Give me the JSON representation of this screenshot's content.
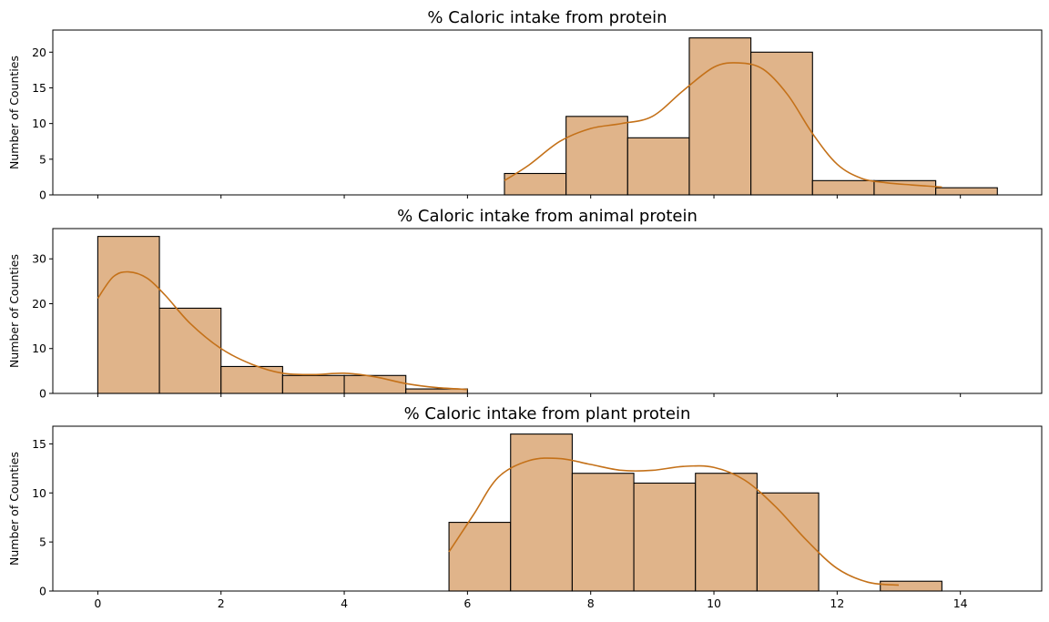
{
  "chart_data": [
    {
      "type": "histogram",
      "title": "% Caloric intake from protein",
      "xlabel": "",
      "ylabel": "Number of Counties",
      "xlim": [
        -0.73,
        15.32
      ],
      "ylim": [
        0,
        23.1
      ],
      "yticks": [
        0,
        5,
        10,
        15,
        20
      ],
      "bin_width": 1.0,
      "bins": [
        {
          "x0": 6.6,
          "x1": 7.6,
          "count": 3
        },
        {
          "x0": 7.6,
          "x1": 8.6,
          "count": 11
        },
        {
          "x0": 8.6,
          "x1": 9.6,
          "count": 8
        },
        {
          "x0": 9.6,
          "x1": 10.6,
          "count": 22
        },
        {
          "x0": 10.6,
          "x1": 11.6,
          "count": 20
        },
        {
          "x0": 11.6,
          "x1": 12.6,
          "count": 2
        },
        {
          "x0": 12.6,
          "x1": 13.6,
          "count": 2
        },
        {
          "x0": 13.6,
          "x1": 14.6,
          "count": 1
        }
      ],
      "kde": {
        "x": [
          6.6,
          7.0,
          7.5,
          8.0,
          8.5,
          9.0,
          9.5,
          10.0,
          10.4,
          10.8,
          11.2,
          11.6,
          12.0,
          12.4,
          12.8,
          13.2,
          13.7
        ],
        "y": [
          2.0,
          4.2,
          7.5,
          9.3,
          10.0,
          11.0,
          14.6,
          17.9,
          18.5,
          17.6,
          14.0,
          8.6,
          4.3,
          2.3,
          1.7,
          1.4,
          1.1
        ]
      }
    },
    {
      "type": "histogram",
      "title": "% Caloric intake from animal protein",
      "xlabel": "",
      "ylabel": "Number of Counties",
      "xlim": [
        -0.73,
        15.32
      ],
      "ylim": [
        0,
        36.75
      ],
      "yticks": [
        0,
        10,
        20,
        30
      ],
      "bin_width": 1.0,
      "bins": [
        {
          "x0": 0.0,
          "x1": 1.0,
          "count": 35
        },
        {
          "x0": 1.0,
          "x1": 2.0,
          "count": 19
        },
        {
          "x0": 2.0,
          "x1": 3.0,
          "count": 6
        },
        {
          "x0": 3.0,
          "x1": 4.0,
          "count": 4
        },
        {
          "x0": 4.0,
          "x1": 5.0,
          "count": 4
        },
        {
          "x0": 5.0,
          "x1": 6.0,
          "count": 1
        }
      ],
      "kde": {
        "x": [
          0.0,
          0.25,
          0.5,
          0.8,
          1.1,
          1.5,
          2.0,
          2.5,
          3.0,
          3.5,
          4.0,
          4.5,
          5.0,
          5.5,
          6.0
        ],
        "y": [
          21.2,
          26.0,
          27.1,
          25.7,
          21.8,
          15.6,
          10.0,
          6.5,
          4.5,
          4.2,
          4.5,
          3.7,
          2.2,
          1.3,
          0.9
        ]
      }
    },
    {
      "type": "histogram",
      "title": "% Caloric intake from plant protein",
      "xlabel": "",
      "ylabel": "Number of Counties",
      "xlim": [
        -0.73,
        15.32
      ],
      "ylim": [
        0,
        16.8
      ],
      "yticks": [
        0,
        5,
        10,
        15
      ],
      "xticks": [
        0,
        2,
        4,
        6,
        8,
        10,
        12,
        14
      ],
      "bin_width": 1.0,
      "bins": [
        {
          "x0": 5.7,
          "x1": 6.7,
          "count": 7
        },
        {
          "x0": 6.7,
          "x1": 7.7,
          "count": 16
        },
        {
          "x0": 7.7,
          "x1": 8.7,
          "count": 12
        },
        {
          "x0": 8.7,
          "x1": 9.7,
          "count": 11
        },
        {
          "x0": 9.7,
          "x1": 10.7,
          "count": 12
        },
        {
          "x0": 10.7,
          "x1": 11.7,
          "count": 10
        },
        {
          "x0": 11.7,
          "x1": 12.7,
          "count": 0
        },
        {
          "x0": 12.7,
          "x1": 13.7,
          "count": 1
        }
      ],
      "kde": {
        "x": [
          5.7,
          6.1,
          6.5,
          7.0,
          7.5,
          8.0,
          8.5,
          9.0,
          9.5,
          10.0,
          10.5,
          11.0,
          11.5,
          12.0,
          12.5,
          13.0
        ],
        "y": [
          4.0,
          7.8,
          11.6,
          13.3,
          13.5,
          12.9,
          12.3,
          12.3,
          12.7,
          12.6,
          11.3,
          8.6,
          5.2,
          2.3,
          0.9,
          0.6
        ]
      }
    }
  ],
  "style": {
    "bar_fill": "#e0b48a",
    "bar_edge": "#000000",
    "kde_color": "#c47119",
    "axis_color": "#000000"
  }
}
